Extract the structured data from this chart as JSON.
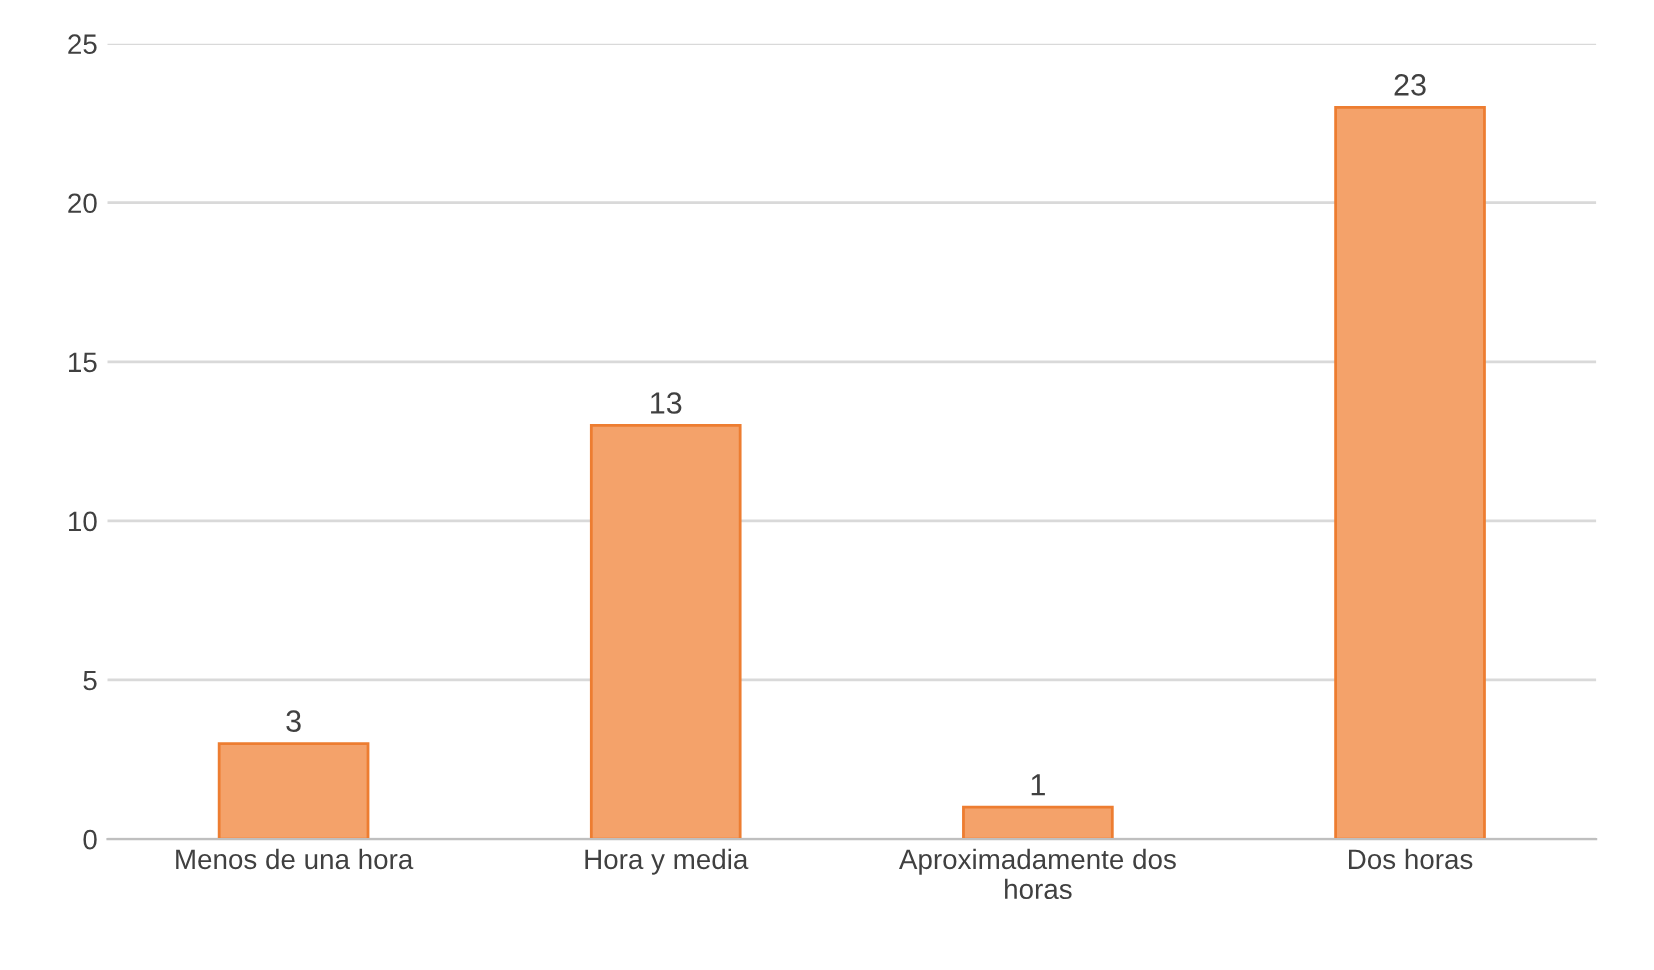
{
  "chart_data": {
    "type": "bar",
    "categories": [
      "Menos de una hora",
      "Hora y media",
      "Aproximadamente dos horas",
      "Dos horas"
    ],
    "values": [
      3,
      13,
      1,
      23
    ],
    "color": "#f4a26a",
    "ylim": [
      0,
      25
    ],
    "yticks": [
      0,
      5,
      10,
      15,
      20,
      25
    ],
    "grid": "y",
    "data_labels": true
  }
}
